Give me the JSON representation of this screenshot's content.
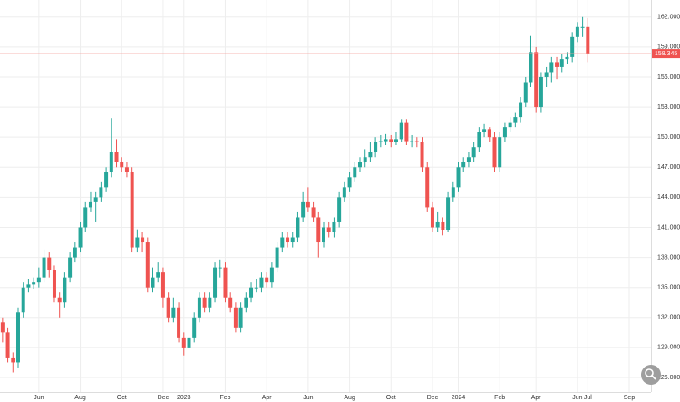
{
  "chart_data": {
    "type": "candlestick",
    "grid": true,
    "colors": {
      "up": "#26a69a",
      "down": "#ef5350",
      "price_line": "#f4a09c"
    },
    "xlim": [
      -0.5,
      125.2
    ],
    "ylim": [
      124.55,
      163.7
    ],
    "xticks": [
      {
        "value": 7,
        "label": "Jun"
      },
      {
        "value": 15,
        "label": "Aug"
      },
      {
        "value": 23,
        "label": "Oct"
      },
      {
        "value": 31,
        "label": "Dec"
      },
      {
        "value": 35,
        "label": "2023"
      },
      {
        "value": 43,
        "label": "Feb"
      },
      {
        "value": 51,
        "label": "Apr"
      },
      {
        "value": 59,
        "label": "Jun"
      },
      {
        "value": 67,
        "label": "Aug"
      },
      {
        "value": 75,
        "label": "Oct"
      },
      {
        "value": 83,
        "label": "Dec"
      },
      {
        "value": 88,
        "label": "2024"
      },
      {
        "value": 96,
        "label": "Feb"
      },
      {
        "value": 103,
        "label": "Apr"
      },
      {
        "value": 111,
        "label": "Jun"
      },
      {
        "value": 113,
        "label": "Jul"
      },
      {
        "value": 121,
        "label": "Sep"
      }
    ],
    "yticks": [
      {
        "value": 126,
        "label": "126.000"
      },
      {
        "value": 129,
        "label": "129.000"
      },
      {
        "value": 132,
        "label": "132.000"
      },
      {
        "value": 135,
        "label": "135.000"
      },
      {
        "value": 138,
        "label": "138.000"
      },
      {
        "value": 141,
        "label": "141.000"
      },
      {
        "value": 144,
        "label": "144.000"
      },
      {
        "value": 147,
        "label": "147.000"
      },
      {
        "value": 150,
        "label": "150.000"
      },
      {
        "value": 153,
        "label": "153.000"
      },
      {
        "value": 156,
        "label": "156.000"
      },
      {
        "value": 159,
        "label": "159.000"
      },
      {
        "value": 162,
        "label": "162.000"
      }
    ],
    "last_price": {
      "value": 158.345,
      "label": "158.345"
    },
    "open": [
      131.5,
      130.5,
      128,
      127.5,
      132.5,
      135,
      135.3,
      135.5,
      136,
      138,
      136.7,
      134,
      133.5,
      136,
      138,
      139,
      141,
      143,
      143.5,
      144,
      145,
      146.5,
      148.5,
      147.5,
      147,
      146.5,
      139,
      140,
      139.5,
      135,
      136,
      136.5,
      134,
      132,
      133,
      130,
      129,
      130,
      132,
      134,
      133,
      134,
      137,
      137,
      134,
      133,
      131,
      133,
      134,
      135,
      135,
      136,
      135.5,
      137,
      139,
      140,
      139.5,
      140,
      142,
      143.5,
      143,
      142,
      139.5,
      141,
      140.5,
      141.5,
      144,
      145,
      146,
      147,
      147.5,
      148,
      148.5,
      149.5,
      149.6,
      149.8,
      149.5,
      149.8,
      151.5,
      149.6,
      149.6,
      149.5,
      147,
      143,
      141,
      141.5,
      140.7,
      144,
      145,
      147,
      147.5,
      148,
      149,
      150.5,
      150.8,
      150,
      147,
      150,
      151,
      151.5,
      152,
      153.5,
      155.5,
      158.5,
      153,
      156,
      156.5,
      157.5,
      157,
      157.8,
      158,
      160,
      161,
      161
    ],
    "high": [
      132,
      131,
      128.5,
      133,
      135.5,
      135.8,
      136,
      137,
      138.8,
      138.5,
      137.2,
      134.5,
      136.5,
      138.5,
      139.5,
      141.5,
      143.5,
      144.5,
      144.5,
      145.5,
      147,
      151.9,
      149.8,
      148,
      147.5,
      147,
      140.8,
      140.5,
      140,
      137,
      137.5,
      137,
      134.5,
      134,
      133.5,
      130.5,
      130.5,
      132.5,
      134.5,
      134.5,
      134.5,
      137.5,
      137.8,
      137.5,
      134.5,
      133.5,
      133.5,
      134.5,
      135.5,
      135.8,
      136.5,
      136.5,
      137.5,
      139.5,
      140.5,
      140.5,
      140.5,
      142.5,
      144.5,
      145,
      143.5,
      142.5,
      141.5,
      141.5,
      142,
      144.5,
      145.5,
      146.5,
      147.5,
      148,
      148.8,
      149.5,
      150,
      150.2,
      150.3,
      150.2,
      150.5,
      151.8,
      151.8,
      150.2,
      150,
      150,
      147.5,
      143.5,
      142.5,
      142,
      144.5,
      145.5,
      147.5,
      148,
      148.5,
      149.5,
      151,
      151.3,
      151,
      150.5,
      150.5,
      151.5,
      152,
      152.5,
      154,
      156,
      160.1,
      159,
      156.5,
      157,
      158,
      158,
      158.3,
      158.5,
      160.5,
      161.5,
      162,
      161.9
    ],
    "low": [
      129.5,
      127.5,
      126.5,
      127,
      132,
      134.5,
      134.8,
      135,
      135.5,
      136,
      133.5,
      132,
      133,
      135.5,
      137.5,
      138.5,
      140.5,
      142.5,
      141.5,
      143.5,
      144.5,
      146,
      147,
      146.5,
      146,
      138.5,
      138.5,
      138.5,
      134.5,
      134.5,
      135.5,
      133,
      131.5,
      131.5,
      129.5,
      128.2,
      128.5,
      129.5,
      131.5,
      132.5,
      132.5,
      133.5,
      136,
      133.5,
      132.5,
      130.5,
      130.5,
      132.5,
      133.5,
      134.5,
      134.5,
      135,
      135,
      136.5,
      138.5,
      139,
      139,
      139.5,
      141.5,
      142.5,
      141.5,
      138,
      139,
      140,
      140,
      141,
      143.5,
      144.5,
      145.5,
      146.5,
      147,
      147.5,
      148,
      149,
      149.2,
      149,
      149.2,
      149.5,
      149.2,
      149,
      149,
      146.5,
      142.5,
      140.5,
      140.5,
      140.2,
      140.5,
      143.5,
      144.5,
      146.5,
      147,
      147.5,
      148.5,
      150,
      149.5,
      146.5,
      146.5,
      149.5,
      150.5,
      151,
      151.5,
      153,
      155,
      152.5,
      152.5,
      155,
      155.5,
      155.8,
      156.5,
      157.3,
      157.5,
      159.5,
      160,
      157.5
    ],
    "close": [
      130.5,
      128,
      127.5,
      132.5,
      135,
      135.3,
      135.5,
      136,
      138,
      136.7,
      134,
      133.5,
      136,
      138,
      139,
      141,
      143,
      143.5,
      144,
      145,
      146.5,
      148.5,
      147.5,
      147,
      146.5,
      139,
      140,
      139.5,
      135,
      136,
      136.5,
      134,
      132,
      133,
      130,
      129,
      130,
      132,
      134,
      133,
      134,
      137,
      137,
      134,
      133,
      131,
      133,
      134,
      135,
      135,
      136,
      135.5,
      137,
      139,
      140,
      139.5,
      140,
      142,
      143.5,
      143,
      142,
      139.5,
      141,
      140.5,
      141.5,
      144,
      145,
      146,
      147,
      147.5,
      148,
      148.5,
      149.5,
      149.6,
      149.8,
      149.5,
      149.8,
      151.5,
      149.6,
      149.6,
      149.5,
      147,
      143,
      141,
      141.5,
      140.7,
      144,
      145,
      147,
      147.5,
      148,
      149,
      150.5,
      150.8,
      150,
      147,
      150,
      151,
      151.5,
      152,
      153.5,
      155.5,
      158.5,
      153,
      156,
      156.5,
      157.5,
      157,
      157.8,
      158,
      160,
      161,
      161,
      158.345
    ]
  }
}
